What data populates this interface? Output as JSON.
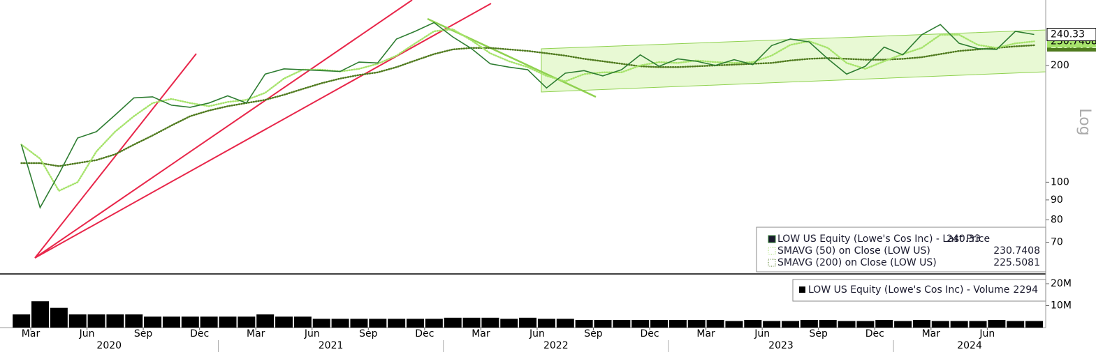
{
  "chart_data": [
    {
      "type": "line",
      "log_scale": true,
      "ylim": [
        58,
        295
      ],
      "yticks": [
        70,
        80,
        90,
        100,
        200
      ],
      "scale_label": "Log",
      "x": [
        "2020-02",
        "2020-03",
        "2020-04",
        "2020-05",
        "2020-06",
        "2020-07",
        "2020-08",
        "2020-09",
        "2020-10",
        "2020-11",
        "2020-12",
        "2021-01",
        "2021-02",
        "2021-03",
        "2021-04",
        "2021-05",
        "2021-06",
        "2021-07",
        "2021-08",
        "2021-09",
        "2021-10",
        "2021-11",
        "2021-12",
        "2022-01",
        "2022-02",
        "2022-03",
        "2022-04",
        "2022-05",
        "2022-06",
        "2022-07",
        "2022-08",
        "2022-09",
        "2022-10",
        "2022-11",
        "2022-12",
        "2023-01",
        "2023-02",
        "2023-03",
        "2023-04",
        "2023-05",
        "2023-06",
        "2023-07",
        "2023-08",
        "2023-09",
        "2023-10",
        "2023-11",
        "2023-12",
        "2024-01",
        "2024-02",
        "2024-03",
        "2024-04",
        "2024-05",
        "2024-06",
        "2024-07",
        "2024-08"
      ],
      "xticks": [
        {
          "value": "2020-03",
          "label": "Mar"
        },
        {
          "value": "2020-06",
          "label": "Jun"
        },
        {
          "value": "2020-09",
          "label": "Sep"
        },
        {
          "value": "2020-12",
          "label": "Dec"
        },
        {
          "value": "2021-03",
          "label": "Mar"
        },
        {
          "value": "2021-06",
          "label": "Jun"
        },
        {
          "value": "2021-09",
          "label": "Sep"
        },
        {
          "value": "2021-12",
          "label": "Dec"
        },
        {
          "value": "2022-03",
          "label": "Mar"
        },
        {
          "value": "2022-06",
          "label": "Jun"
        },
        {
          "value": "2022-09",
          "label": "Sep"
        },
        {
          "value": "2022-12",
          "label": "Dec"
        },
        {
          "value": "2023-03",
          "label": "Mar"
        },
        {
          "value": "2023-06",
          "label": "Jun"
        },
        {
          "value": "2023-09",
          "label": "Sep"
        },
        {
          "value": "2023-12",
          "label": "Dec"
        },
        {
          "value": "2024-03",
          "label": "Mar"
        },
        {
          "value": "2024-06",
          "label": "Jun"
        }
      ],
      "years": [
        "2020",
        "2021",
        "2022",
        "2023",
        "2024"
      ],
      "series": [
        {
          "name": "LOW US Equity (Lowe's Cos Inc) - Last Price",
          "color": "#2e7d32",
          "style": "solid",
          "values": [
            125,
            86,
            105,
            130,
            135,
            149,
            165,
            166,
            158,
            156,
            160,
            167,
            160,
            190,
            196,
            195,
            194,
            193,
            204,
            203,
            234,
            245,
            258,
            237,
            221,
            202,
            198,
            195,
            175,
            191,
            194,
            188,
            195,
            213,
            199,
            208,
            205,
            200,
            207,
            201,
            225,
            234,
            230,
            208,
            190,
            199,
            223,
            213,
            240,
            255,
            228,
            221,
            220,
            245,
            240.33
          ]
        },
        {
          "name": "SMAVG (50)  on Close (LOW US)",
          "color": "#a6e36b",
          "style": "dotted",
          "values": [
            125,
            115,
            95,
            100,
            120,
            135,
            148,
            160,
            164,
            160,
            157,
            161,
            163,
            170,
            185,
            195,
            195,
            193,
            196,
            202,
            212,
            228,
            245,
            248,
            232,
            215,
            205,
            198,
            188,
            182,
            190,
            192,
            192,
            200,
            204,
            203,
            206,
            204,
            203,
            204,
            212,
            226,
            231,
            222,
            203,
            196,
            205,
            214,
            222,
            240,
            240,
            226,
            222,
            228,
            230.7408
          ]
        },
        {
          "name": "SMAVG (200)  on Close (LOW US)",
          "color": "#4f7a1e",
          "style": "dotted",
          "values": [
            112,
            112,
            110,
            112,
            114,
            118,
            125,
            132,
            140,
            148,
            153,
            157,
            160,
            163,
            168,
            174,
            180,
            185,
            189,
            192,
            198,
            206,
            214,
            220,
            222,
            222,
            220,
            218,
            215,
            212,
            208,
            205,
            202,
            199,
            198,
            198,
            199,
            200,
            201,
            202,
            203,
            206,
            208,
            209,
            208,
            207,
            207,
            208,
            210,
            214,
            218,
            220,
            222,
            224,
            225.5081
          ]
        }
      ]
    },
    {
      "type": "bar",
      "ylim": [
        0,
        23500000
      ],
      "yticks": [
        {
          "value": 10000000,
          "label": "10M"
        },
        {
          "value": 20000000,
          "label": "20M"
        }
      ],
      "legend": "LOW US Equity (Lowe's Cos Inc) - Volume",
      "legend_value": 2294,
      "color": "#000000",
      "x": [
        "2020-02",
        "2020-03",
        "2020-04",
        "2020-05",
        "2020-06",
        "2020-07",
        "2020-08",
        "2020-09",
        "2020-10",
        "2020-11",
        "2020-12",
        "2021-01",
        "2021-02",
        "2021-03",
        "2021-04",
        "2021-05",
        "2021-06",
        "2021-07",
        "2021-08",
        "2021-09",
        "2021-10",
        "2021-11",
        "2021-12",
        "2022-01",
        "2022-02",
        "2022-03",
        "2022-04",
        "2022-05",
        "2022-06",
        "2022-07",
        "2022-08",
        "2022-09",
        "2022-10",
        "2022-11",
        "2022-12",
        "2023-01",
        "2023-02",
        "2023-03",
        "2023-04",
        "2023-05",
        "2023-06",
        "2023-07",
        "2023-08",
        "2023-09",
        "2023-10",
        "2023-11",
        "2023-12",
        "2024-01",
        "2024-02",
        "2024-03",
        "2024-04",
        "2024-05",
        "2024-06",
        "2024-07",
        "2024-08"
      ],
      "values": [
        6000000,
        12000000,
        9000000,
        6000000,
        6000000,
        6000000,
        6000000,
        5000000,
        5000000,
        5000000,
        5000000,
        5000000,
        5000000,
        6000000,
        5000000,
        5000000,
        4000000,
        4000000,
        4000000,
        4000000,
        4000000,
        4000000,
        4000000,
        4500000,
        4500000,
        4500000,
        4000000,
        4500000,
        4000000,
        4000000,
        3500000,
        3500000,
        3500000,
        3500000,
        3500000,
        3500000,
        3500000,
        3500000,
        3000000,
        3500000,
        3000000,
        3000000,
        3500000,
        3500000,
        3000000,
        3000000,
        3500000,
        3000000,
        3500000,
        3000000,
        3000000,
        3000000,
        3500000,
        3000000,
        3000000
      ]
    }
  ]
}
